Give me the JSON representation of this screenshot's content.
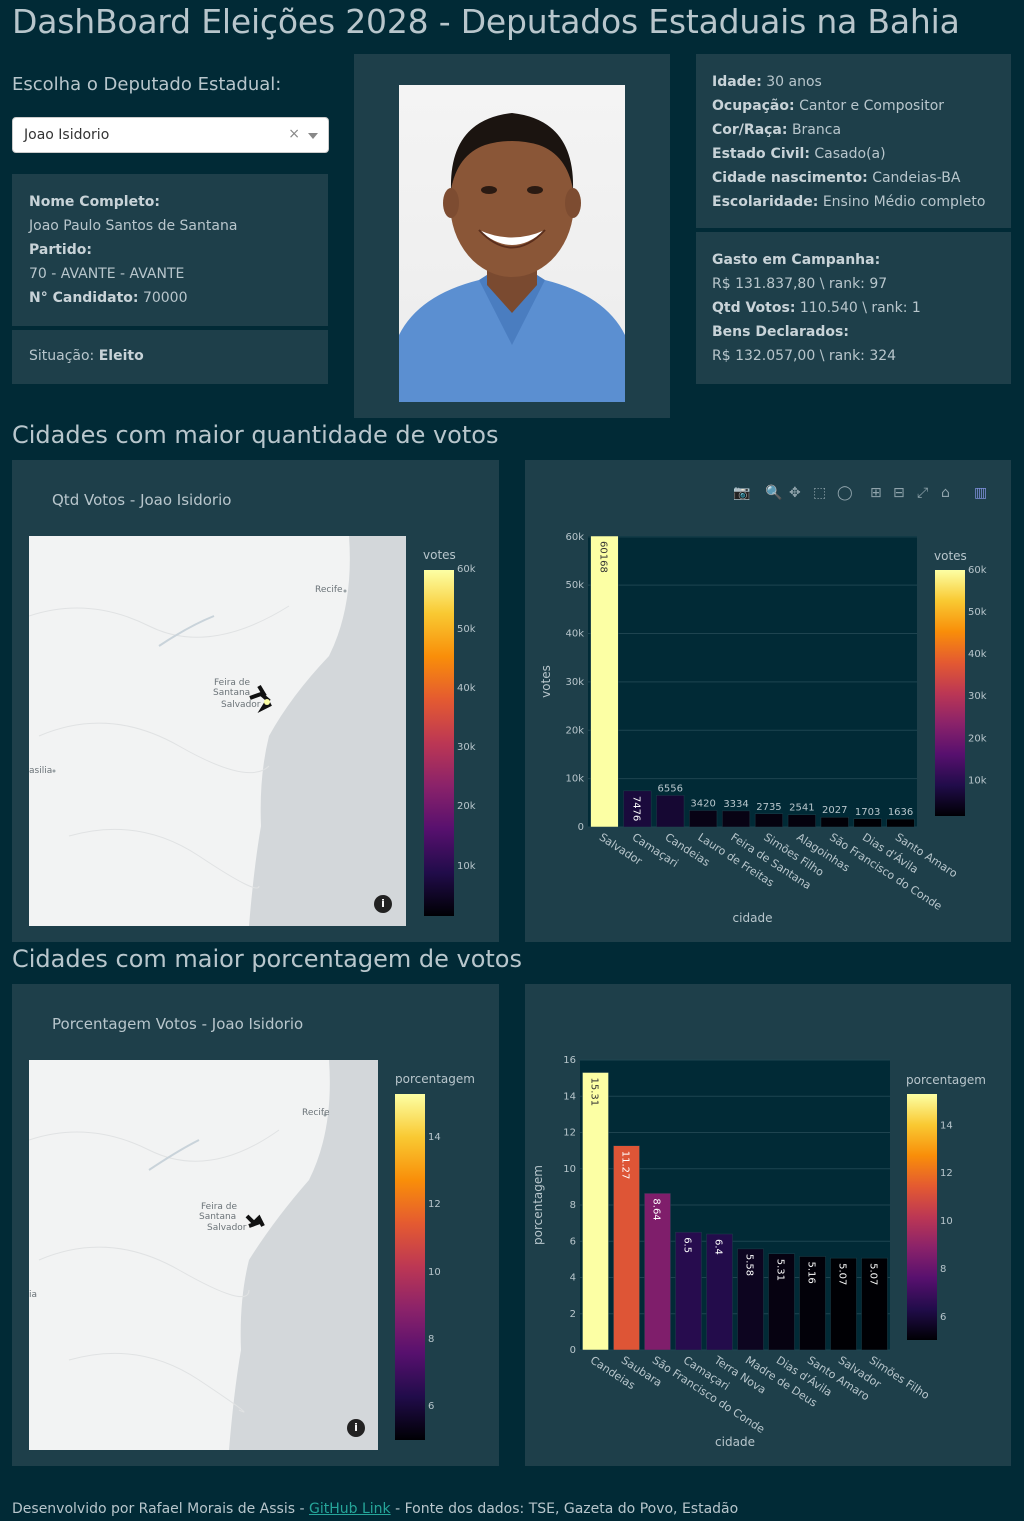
{
  "page_title": "DashBoard Eleições 2028 - Deputados Estaduais na Bahia",
  "selector": {
    "label": "Escolha o Deputado Estadual:",
    "value": "Joao Isidorio"
  },
  "candidate": {
    "full_name_label": "Nome Completo:",
    "full_name": "Joao Paulo Santos de Santana",
    "party_label": "Partido:",
    "party": "70 - AVANTE - AVANTE",
    "number_label": "N° Candidato:",
    "number": "70000",
    "status_label": "Situação:",
    "status": "Eleito"
  },
  "personal": {
    "age_label": "Idade:",
    "age": "30 anos",
    "occupation_label": "Ocupação:",
    "occupation": "Cantor e Compositor",
    "race_label": "Cor/Raça:",
    "race": "Branca",
    "marital_label": "Estado Civil:",
    "marital": "Casado(a)",
    "birth_city_label": "Cidade nascimento:",
    "birth_city": "Candeias-BA",
    "education_label": "Escolaridade:",
    "education": "Ensino Médio completo"
  },
  "campaign": {
    "spend_label": "Gasto em Campanha:",
    "spend": "R$ 131.837,80 \\ rank: 97",
    "votes_label": "Qtd Votos:",
    "votes": "110.540 \\ rank: 1",
    "assets_label": "Bens Declarados:",
    "assets": "R$ 132.057,00 \\ rank: 324"
  },
  "sections": {
    "votes_title": "Cidades com maior quantidade de votos",
    "percent_title": "Cidades com maior porcentagem de votos"
  },
  "maps": {
    "votes_title": "Qtd Votos - Joao Isidorio",
    "percent_title": "Porcentagem Votos - Joao Isidorio",
    "labels": {
      "recife": "Recife",
      "feira1": "Feira de",
      "feira2": "Santana",
      "salvador": "Salvador",
      "brasilia": "asilia",
      "brasilia2": "ia"
    },
    "votes_colorbar_title": "votes",
    "votes_colorbar_ticks": [
      "60k",
      "50k",
      "40k",
      "30k",
      "20k",
      "10k"
    ],
    "percent_colorbar_title": "porcentagem",
    "percent_colorbar_ticks": [
      "14",
      "12",
      "10",
      "8",
      "6"
    ]
  },
  "icons": [
    "camera-icon",
    "zoom-icon",
    "pan-icon",
    "box-select-icon",
    "lasso-icon",
    "zoom-in-icon",
    "zoom-out-icon",
    "autoscale-icon",
    "home-icon",
    "plotly-logo-icon",
    "info-icon"
  ],
  "chart_data": [
    {
      "type": "bar",
      "categories": [
        "Salvador",
        "Camaçari",
        "Candeias",
        "Lauro de Freitas",
        "Feira de Santana",
        "Simões Filho",
        "Alagoinhas",
        "São Francisco do Conde",
        "Dias d'Ávila",
        "Santo Amaro"
      ],
      "values": [
        60168,
        7476,
        6556,
        3420,
        3334,
        2735,
        2541,
        2027,
        1703,
        1636
      ],
      "xlabel": "cidade",
      "ylabel": "votes",
      "ylim": [
        0,
        60168
      ],
      "yticks": [
        "0",
        "10k",
        "20k",
        "30k",
        "40k",
        "50k",
        "60k"
      ],
      "colorbar_title": "votes",
      "colorbar_ticks": [
        "60k",
        "50k",
        "40k",
        "30k",
        "20k",
        "10k"
      ]
    },
    {
      "type": "bar",
      "categories": [
        "Candeias",
        "Saubara",
        "São Francisco do Conde",
        "Camaçari",
        "Terra Nova",
        "Madre de Deus",
        "Dias d'Ávila",
        "Santo Amaro",
        "Salvador",
        "Simões Filho"
      ],
      "values": [
        15.31,
        11.27,
        8.64,
        6.5,
        6.4,
        5.58,
        5.31,
        5.16,
        5.07,
        5.07
      ],
      "xlabel": "cidade",
      "ylabel": "porcentagem",
      "ylim": [
        0,
        16
      ],
      "yticks": [
        "0",
        "2",
        "4",
        "6",
        "8",
        "10",
        "12",
        "14",
        "16"
      ],
      "colorbar_title": "porcentagem",
      "colorbar_ticks": [
        "14",
        "12",
        "10",
        "8",
        "6"
      ]
    }
  ],
  "footer": {
    "prefix": "Desenvolvido por Rafael Morais de Assis - ",
    "link": "GitHub Link",
    "suffix": " - Fonte dos dados: TSE, Gazeta do Povo, Estadão"
  }
}
